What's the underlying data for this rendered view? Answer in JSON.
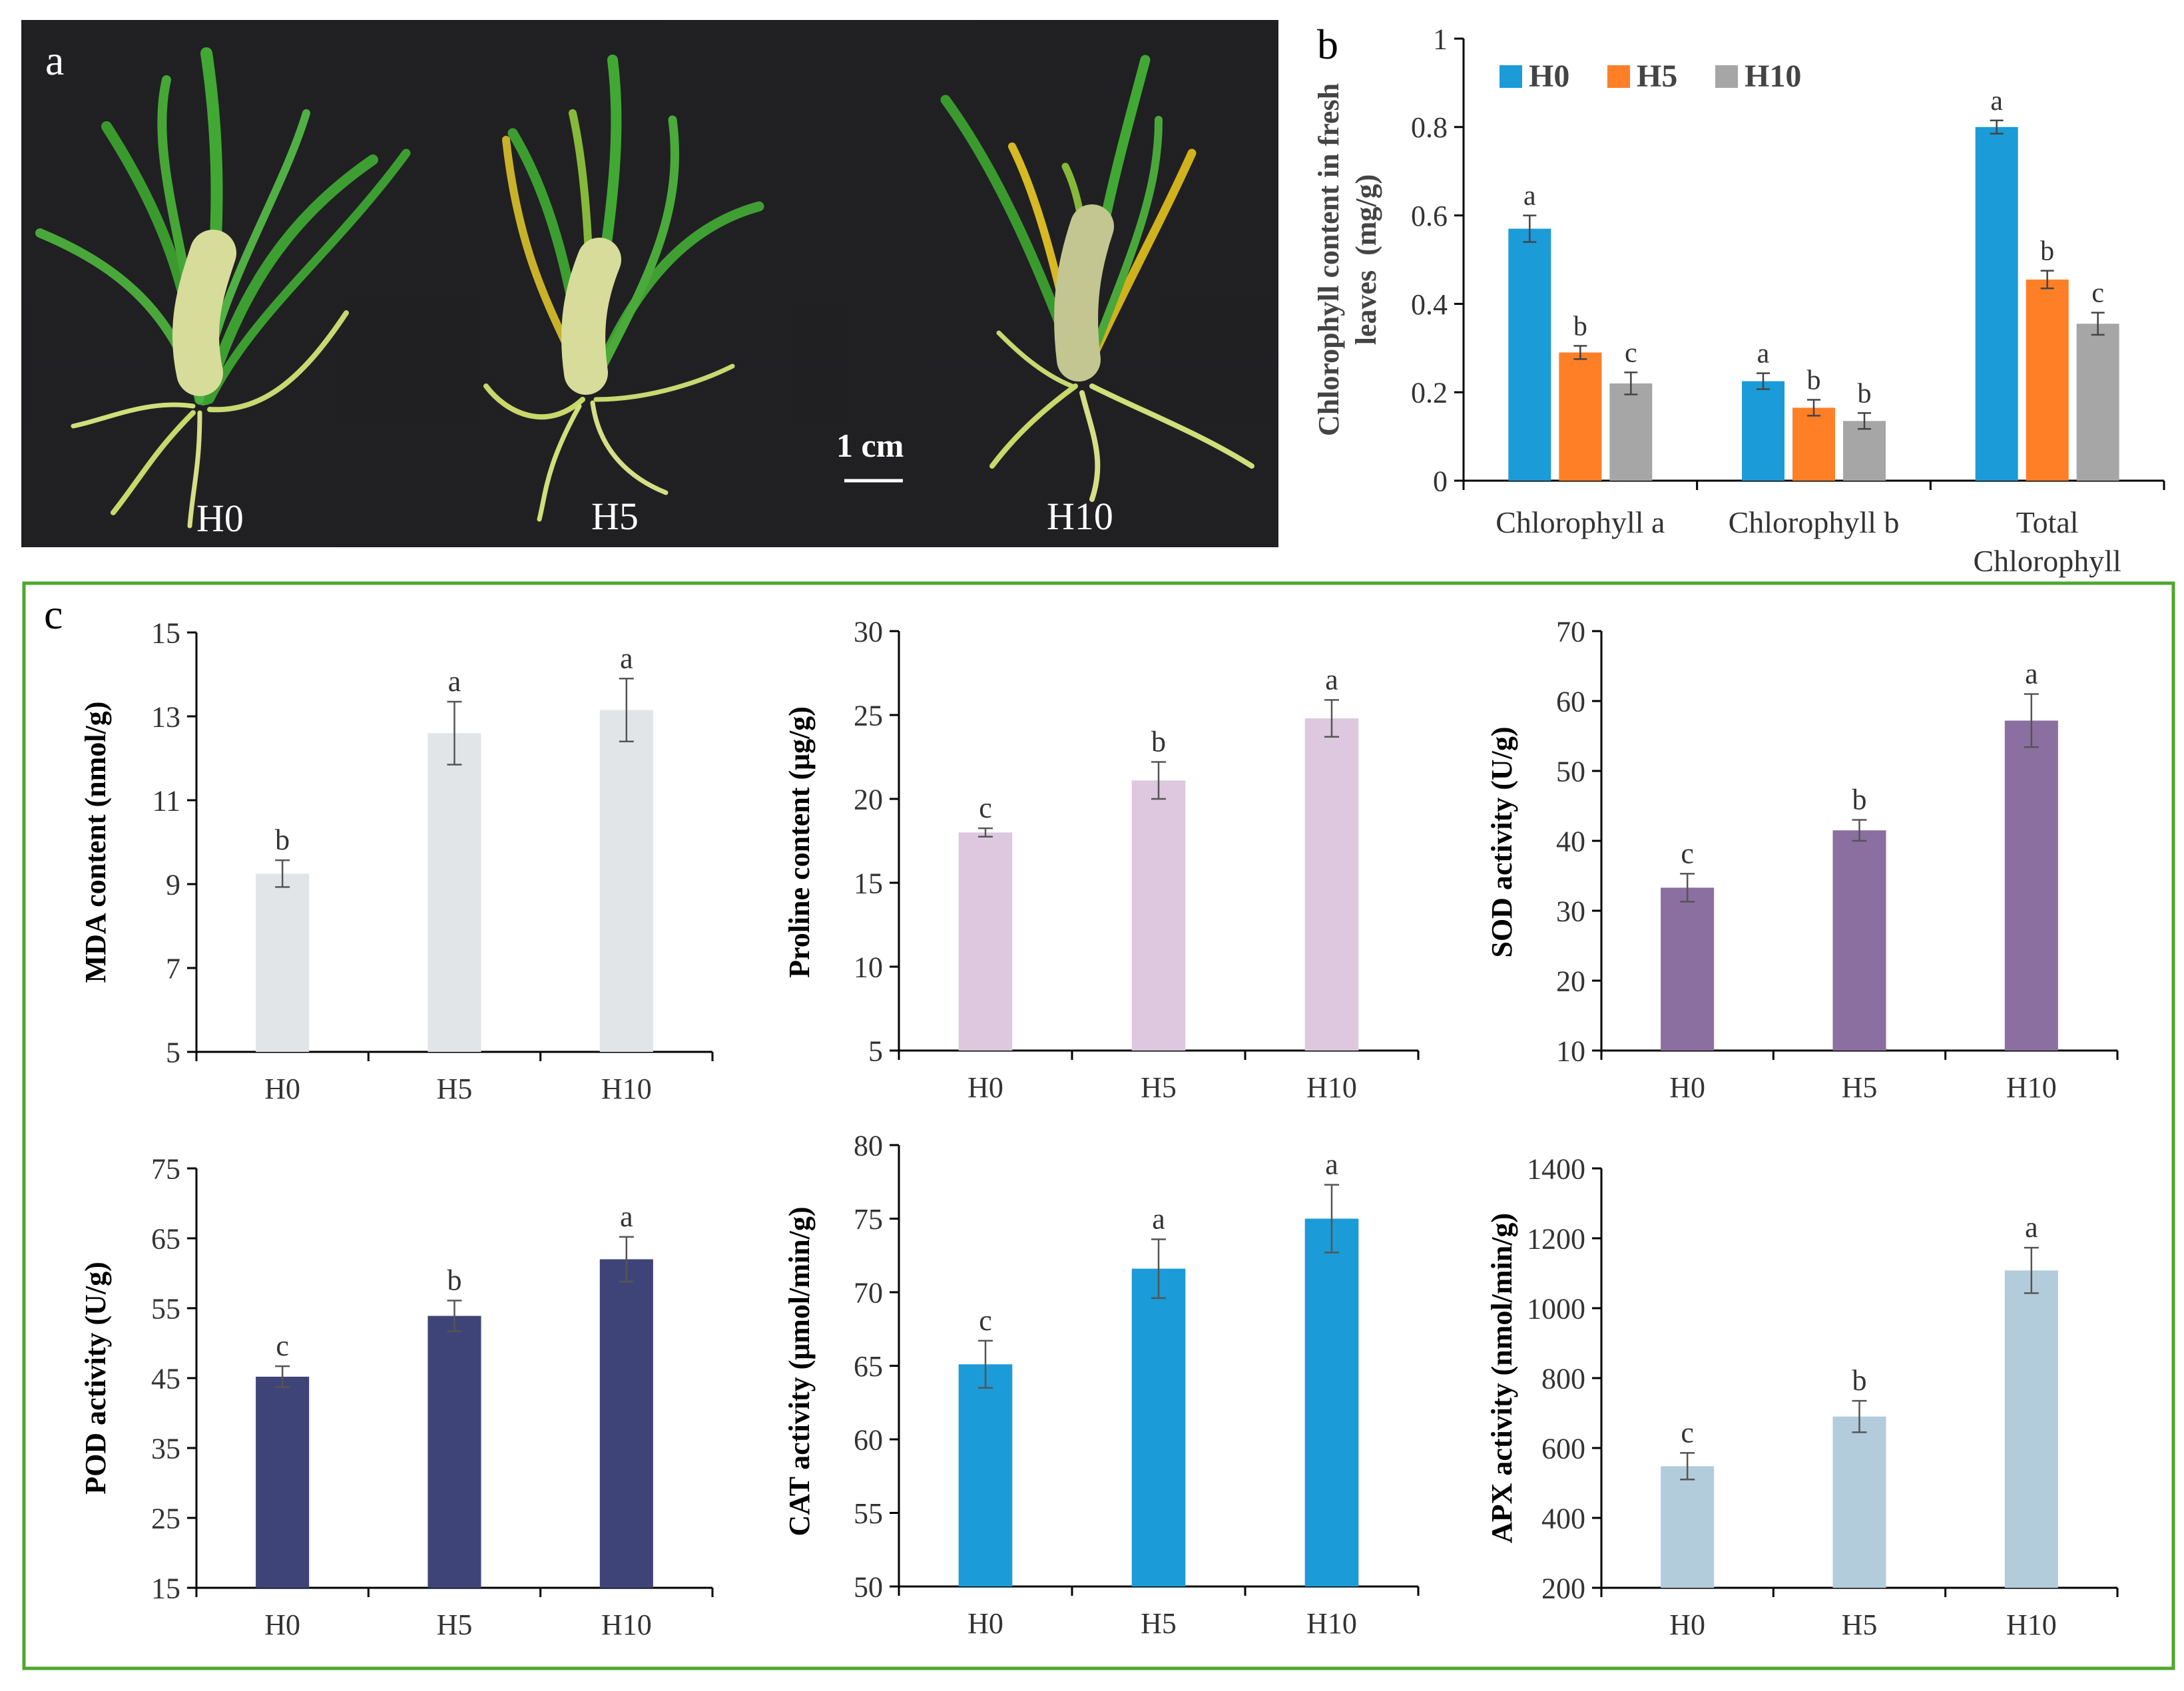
{
  "panel_a": {
    "label": "a",
    "scale_bar": "1 cm",
    "plant_labels": [
      "H0",
      "H5",
      "H10"
    ]
  },
  "panel_b": {
    "label": "b"
  },
  "panel_c": {
    "label": "c",
    "frame_color": "#4EA72E"
  },
  "chart_data": [
    {
      "id": "chlorophyll",
      "type": "bar",
      "ylabel_lines": [
        "Chlorophyll content in fresh",
        "leaves  (mg/g)"
      ],
      "categories": [
        [
          "Chlorophyll a"
        ],
        [
          "Chlorophyll b"
        ],
        [
          "Total",
          "Chlorophyll"
        ]
      ],
      "ylim": [
        0,
        1
      ],
      "yticks": [
        "0",
        "0.2",
        "0.4",
        "0.6",
        "0.8",
        "1"
      ],
      "legend": "top-left",
      "series": [
        {
          "name": "H0",
          "color": "#1B9BD7",
          "values": [
            0.57,
            0.225,
            0.8
          ],
          "errors": [
            0.03,
            0.018,
            0.015
          ],
          "letters": [
            "a",
            "a",
            "a"
          ]
        },
        {
          "name": "H5",
          "color": "#FF7F27",
          "values": [
            0.29,
            0.165,
            0.455
          ],
          "errors": [
            0.015,
            0.018,
            0.02
          ],
          "letters": [
            "b",
            "b",
            "b"
          ]
        },
        {
          "name": "H10",
          "color": "#A6A6A6",
          "values": [
            0.22,
            0.135,
            0.355
          ],
          "errors": [
            0.025,
            0.018,
            0.025
          ],
          "letters": [
            "c",
            "b",
            "c"
          ]
        }
      ]
    },
    {
      "id": "mda",
      "type": "bar",
      "ylabel": "MDA content (nmol/g)",
      "categories": [
        "H0",
        "H5",
        "H10"
      ],
      "ylim": [
        5,
        15
      ],
      "yticks": [
        "5",
        "7",
        "9",
        "11",
        "13",
        "15"
      ],
      "color": "#E2E5E8",
      "values": [
        9.25,
        12.6,
        13.15
      ],
      "errors": [
        0.32,
        0.75,
        0.75
      ],
      "letters": [
        "b",
        "a",
        "a"
      ]
    },
    {
      "id": "proline",
      "type": "bar",
      "ylabel": "Proline content (μg/g)",
      "categories": [
        "H0",
        "H5",
        "H10"
      ],
      "ylim": [
        5,
        30
      ],
      "yticks": [
        "5",
        "10",
        "15",
        "20",
        "25",
        "30"
      ],
      "color": "#DDC8DF",
      "values": [
        18.0,
        21.1,
        24.8
      ],
      "errors": [
        0.25,
        1.1,
        1.1
      ],
      "letters": [
        "c",
        "b",
        "a"
      ]
    },
    {
      "id": "sod",
      "type": "bar",
      "ylabel": "SOD activity (U/g)",
      "categories": [
        "H0",
        "H5",
        "H10"
      ],
      "ylim": [
        10,
        70
      ],
      "yticks": [
        "10",
        "20",
        "30",
        "40",
        "50",
        "60",
        "70"
      ],
      "color": "#8B6FA0",
      "values": [
        33.3,
        41.5,
        57.2
      ],
      "errors": [
        2.0,
        1.5,
        3.8
      ],
      "letters": [
        "c",
        "b",
        "a"
      ]
    },
    {
      "id": "pod",
      "type": "bar",
      "ylabel": "POD activity (U/g)",
      "categories": [
        "H0",
        "H5",
        "H10"
      ],
      "ylim": [
        15,
        75
      ],
      "yticks": [
        "15",
        "25",
        "35",
        "45",
        "55",
        "65",
        "75"
      ],
      "color": "#3F4478",
      "values": [
        45.2,
        53.9,
        62.0
      ],
      "errors": [
        1.5,
        2.2,
        3.2
      ],
      "letters": [
        "c",
        "b",
        "a"
      ]
    },
    {
      "id": "cat",
      "type": "bar",
      "ylabel": "CAT activity (μmol/min/g)",
      "categories": [
        "H0",
        "H5",
        "H10"
      ],
      "ylim": [
        50,
        80
      ],
      "yticks": [
        "50",
        "55",
        "60",
        "65",
        "70",
        "75",
        "80"
      ],
      "color": "#1B9BD7",
      "values": [
        65.1,
        71.6,
        75.0
      ],
      "errors": [
        1.6,
        2.0,
        2.3
      ],
      "letters": [
        "c",
        "a",
        "a"
      ]
    },
    {
      "id": "apx",
      "type": "bar",
      "ylabel": "APX activity (nmol/min/g)",
      "categories": [
        "H0",
        "H5",
        "H10"
      ],
      "ylim": [
        200,
        1400
      ],
      "yticks": [
        "200",
        "400",
        "600",
        "800",
        "1000",
        "1200",
        "1400"
      ],
      "color": "#B3CCDC",
      "values": [
        548,
        690,
        1108
      ],
      "errors": [
        38,
        45,
        65
      ],
      "letters": [
        "c",
        "b",
        "a"
      ]
    }
  ]
}
